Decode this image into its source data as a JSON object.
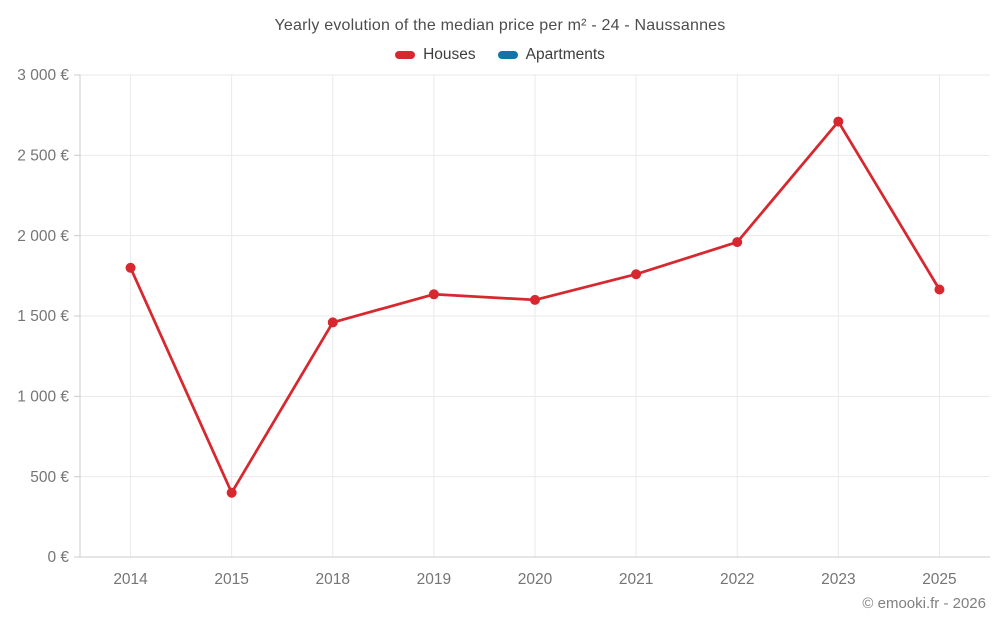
{
  "header": {
    "title": "Yearly evolution of the median price per m² - 24 - Naussannes"
  },
  "legend": {
    "items": [
      {
        "label": "Houses",
        "color": "#d7282f"
      },
      {
        "label": "Apartments",
        "color": "#1274a8"
      }
    ]
  },
  "footer": {
    "credit": "© emooki.fr - 2026"
  },
  "colors": {
    "houses": "#d7282f",
    "apartments": "#1274a8",
    "grid": "#e9e9e9",
    "axis": "#cccccc",
    "title_text": "#4d4d4d",
    "tick_text": "#757575",
    "background": "#ffffff"
  },
  "chart_data": {
    "type": "line",
    "title": "Yearly evolution of the median price per m² - 24 - Naussannes",
    "xlabel": "",
    "ylabel": "",
    "categories": [
      "2014",
      "2015",
      "2018",
      "2019",
      "2020",
      "2021",
      "2022",
      "2023",
      "2025"
    ],
    "series": [
      {
        "name": "Houses",
        "color": "#d7282f",
        "values": [
          1800,
          400,
          1460,
          1635,
          1600,
          1760,
          1960,
          2710,
          1665
        ]
      },
      {
        "name": "Apartments",
        "color": "#1274a8",
        "values": []
      }
    ],
    "ylim": [
      0,
      3000
    ],
    "yticks": [
      0,
      500,
      1000,
      1500,
      2000,
      2500,
      3000
    ],
    "ytick_labels": [
      "0 €",
      "500 €",
      "1 000 €",
      "1 500 €",
      "2 000 €",
      "2 500 €",
      "3 000 €"
    ],
    "grid": true,
    "legend_position": "top",
    "currency": "€"
  }
}
